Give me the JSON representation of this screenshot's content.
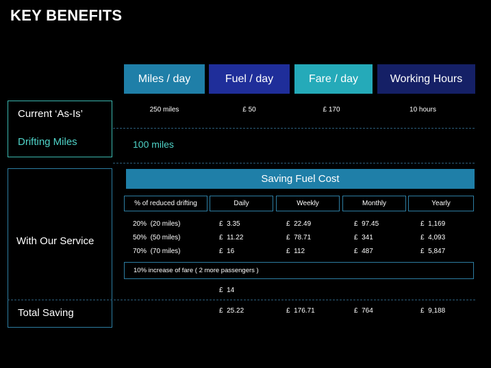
{
  "title": "KEY BENEFITS",
  "headers": [
    "Miles / day",
    "Fuel  /  day",
    "Fare / day",
    "Working Hours"
  ],
  "current": {
    "label": "Current ‘As-Is’",
    "values": [
      "250 miles",
      "£ 50",
      "£ 170",
      "10 hours"
    ]
  },
  "drifting": {
    "label": "Drifting Miles",
    "value": "100 miles"
  },
  "service": {
    "label": "With Our Service",
    "banner": "Saving Fuel Cost",
    "columns": [
      "% of reduced drifting",
      "Daily",
      "Weekly",
      "Monthly",
      "Yearly"
    ],
    "rows": [
      {
        "label": "20%  (20 miles)",
        "values": [
          "£  3.35",
          "£  22.49",
          "£  97.45",
          "£  1,169"
        ]
      },
      {
        "label": "50%  (50 miles)",
        "values": [
          "£  11.22",
          "£  78.71",
          "£  341",
          "£  4,093"
        ]
      },
      {
        "label": "70%  (70 miles)",
        "values": [
          "£  16",
          "£  112",
          "£  487",
          "£  5,847"
        ]
      }
    ],
    "fare_increase_label": "10% increase of fare ( 2 more passengers )",
    "fare_increase_value": "£  14"
  },
  "total": {
    "label": "Total Saving",
    "values": [
      "£  25.22",
      "£  176.71",
      "£  764",
      "£  9,188"
    ]
  }
}
